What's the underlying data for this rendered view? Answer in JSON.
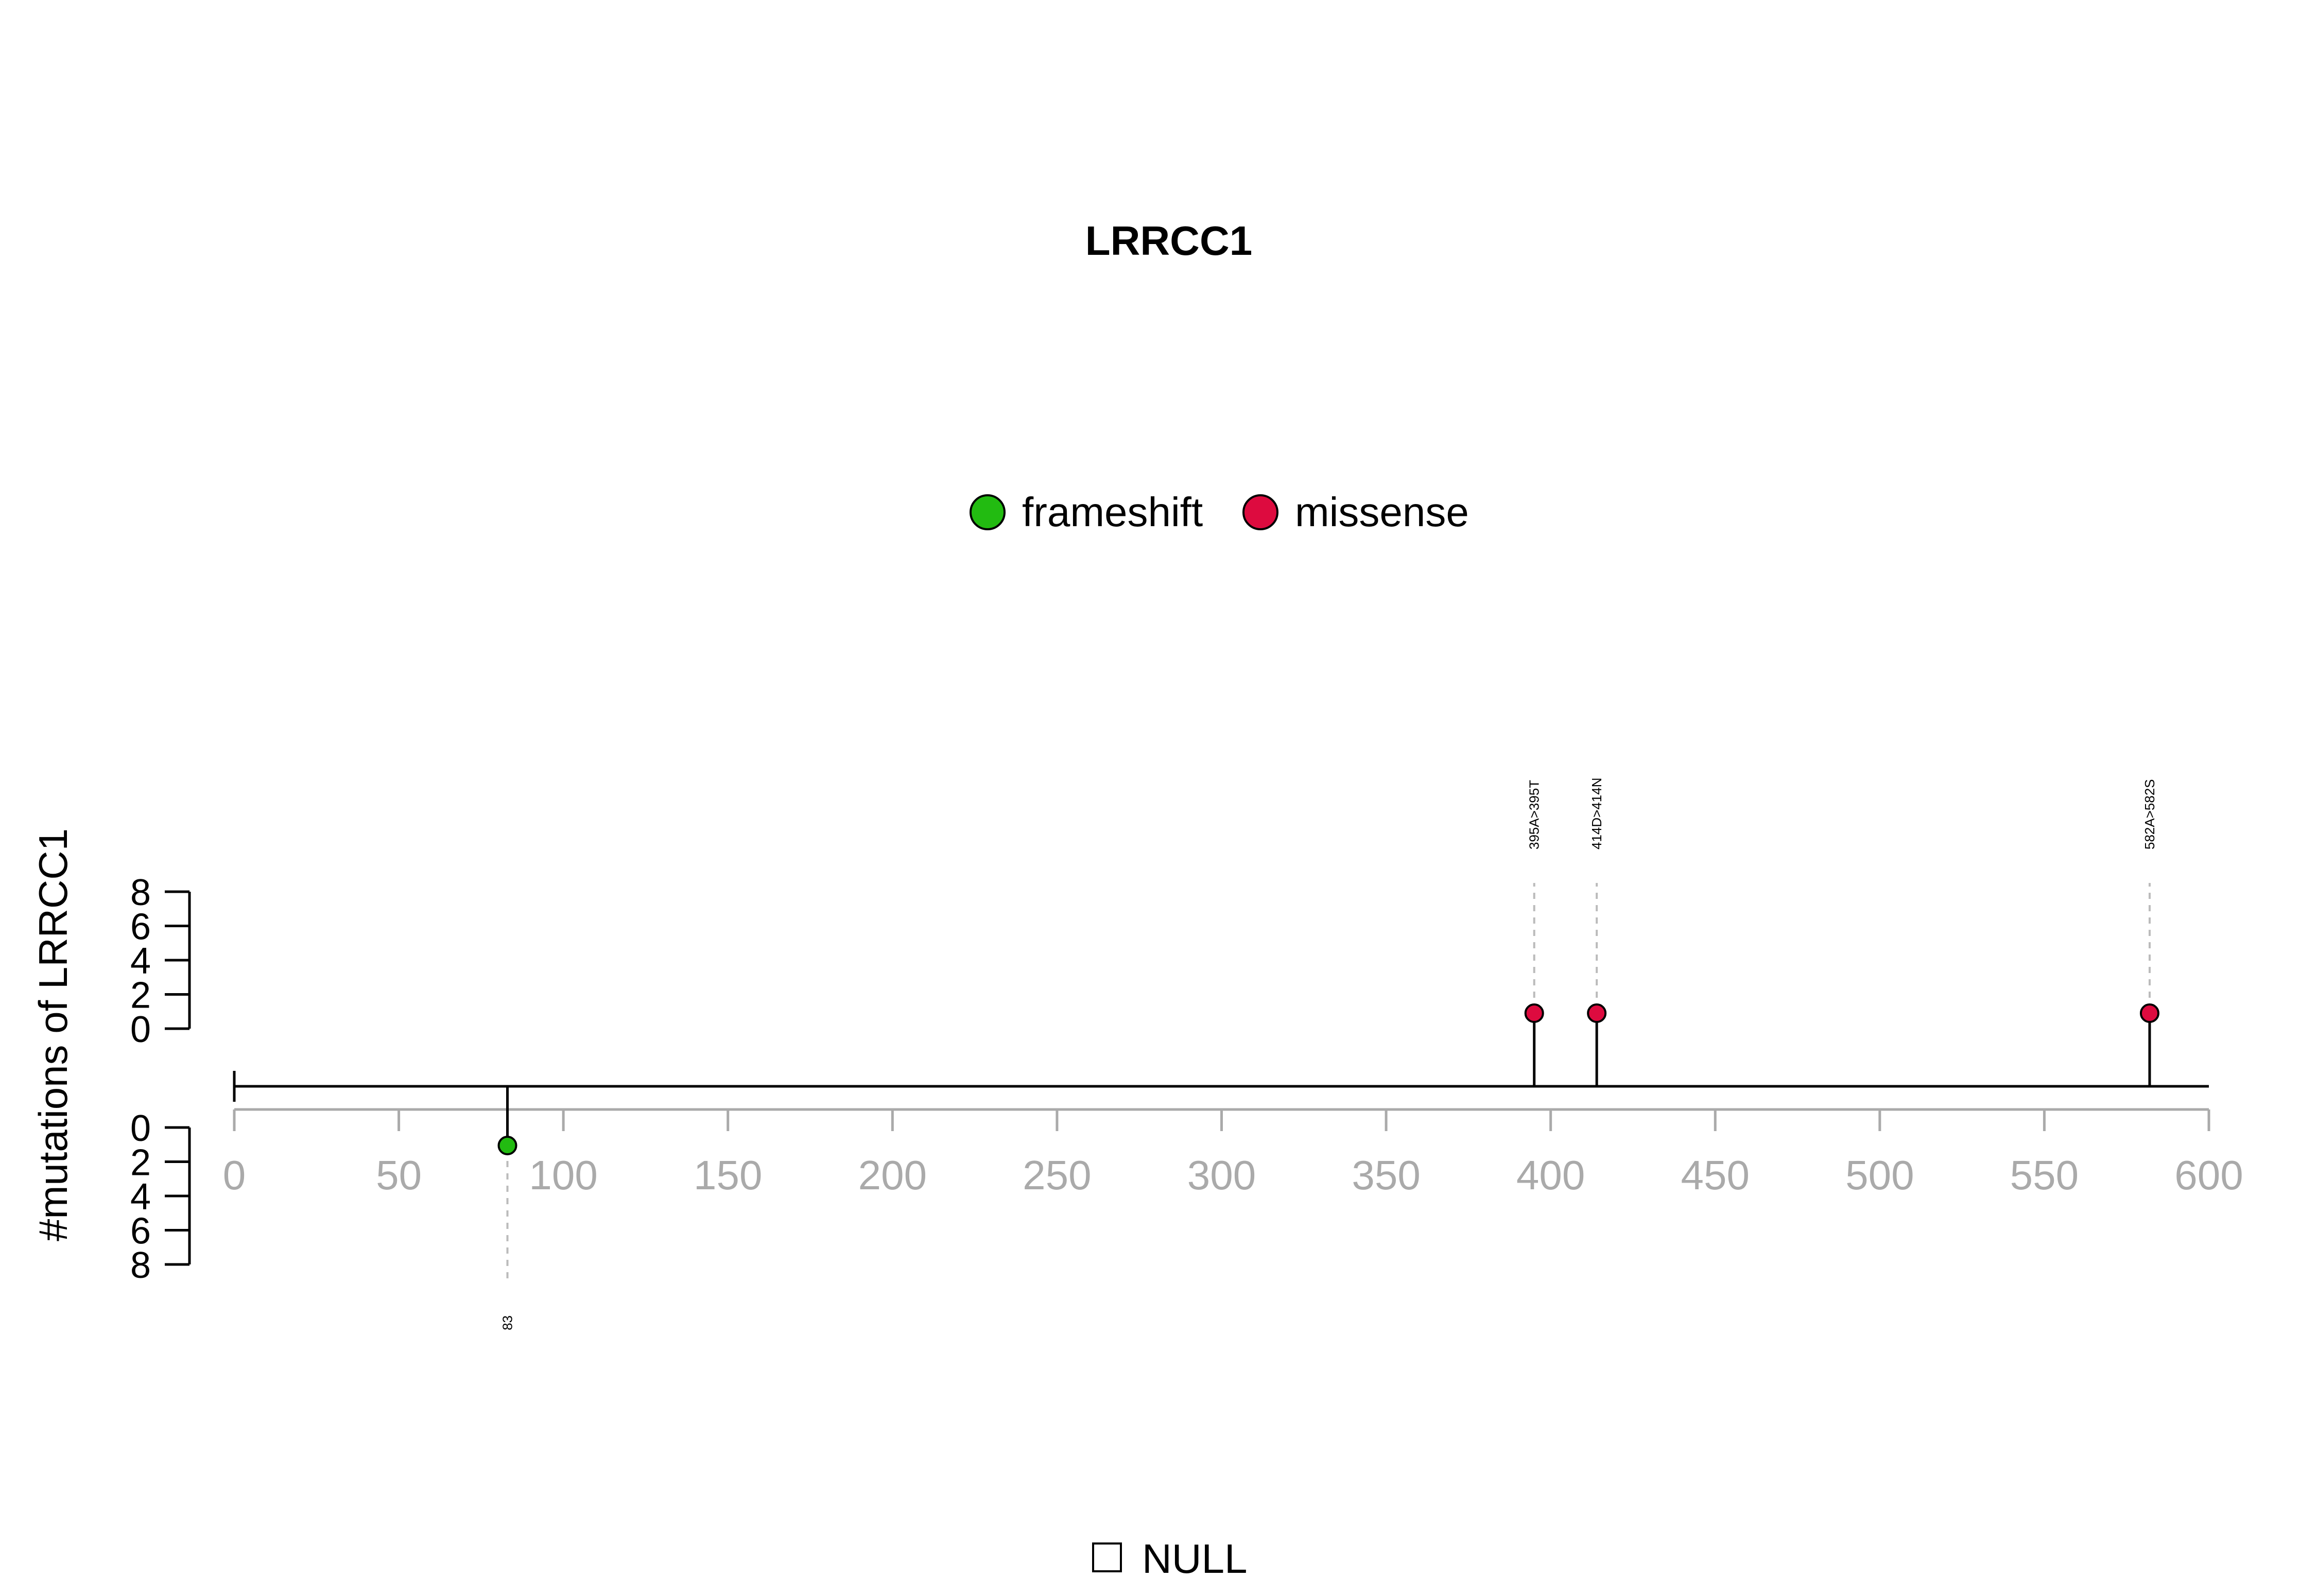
{
  "chart_data": {
    "type": "lollipop",
    "title": "LRRCC1",
    "ylabel": "#mutations of LRRCC1",
    "xlim": [
      0,
      600
    ],
    "xticks": [
      0,
      50,
      100,
      150,
      200,
      250,
      300,
      350,
      400,
      450,
      500,
      550,
      600
    ],
    "ylim_top": [
      0,
      8
    ],
    "yticks_top": [
      0,
      2,
      4,
      6,
      8
    ],
    "ylim_bottom": [
      0,
      8
    ],
    "yticks_bottom": [
      0,
      2,
      4,
      6,
      8
    ],
    "legend": [
      {
        "name": "frameshift",
        "color": "#22bb11"
      },
      {
        "name": "missense",
        "color": "#dd0b3f"
      }
    ],
    "mutations": [
      {
        "position": 83,
        "count": 1,
        "type": "frameshift",
        "label": "83",
        "side": "bottom"
      },
      {
        "position": 395,
        "count": 1,
        "type": "missense",
        "label": "395A>395T",
        "side": "top"
      },
      {
        "position": 414,
        "count": 1,
        "type": "missense",
        "label": "414D>414N",
        "side": "top"
      },
      {
        "position": 582,
        "count": 1,
        "type": "missense",
        "label": "582A>582S",
        "side": "top"
      }
    ],
    "domain_legend": [
      {
        "name": "NULL",
        "color": "#ffffff"
      }
    ]
  }
}
